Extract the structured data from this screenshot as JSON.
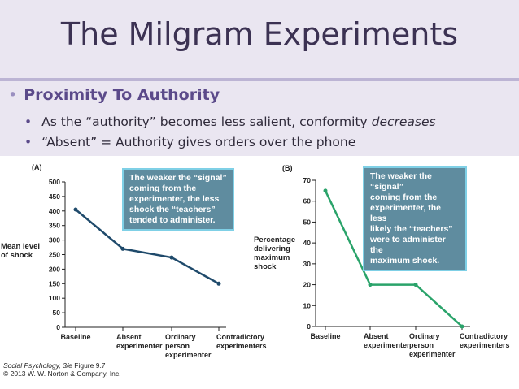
{
  "slide": {
    "title": "The Milgram Experiments",
    "bullet_main": "Proximity To Authority",
    "bullet_sub1_pre": "As the “authority” becomes less salient, conformity ",
    "bullet_sub1_em": "decreases",
    "bullet_sub2": "“Absent” = Authority gives orders over the phone",
    "bullet_glyph": "•"
  },
  "colors": {
    "header_bg": "#eae6f1",
    "title": "#3c3253",
    "accent": "#5b4a8a",
    "line_a": "#1f4a6b",
    "line_b": "#2aa36a",
    "callout_bg": "#5f8c9f",
    "callout_border": "#7fd0e6"
  },
  "chart_data": [
    {
      "panel": "(A)",
      "type": "line",
      "categories": [
        "Baseline",
        "Absent experimenter",
        "Ordinary person experimenter",
        "Contradictory experimenters"
      ],
      "category_lines": [
        [
          "Baseline"
        ],
        [
          "Absent",
          "experimenter"
        ],
        [
          "Ordinary",
          "person",
          "experimenter"
        ],
        [
          "Contradictory",
          "experimenters"
        ]
      ],
      "values": [
        405,
        270,
        240,
        150
      ],
      "ylabel_lines": [
        "Mean level",
        "of shock"
      ],
      "ylim": [
        0,
        500
      ],
      "yticks": [
        0,
        50,
        100,
        150,
        200,
        250,
        300,
        350,
        400,
        450,
        500
      ],
      "callout": [
        "The weaker the “signal”",
        "coming from the",
        "experimenter, the less",
        "shock the “teachers”",
        "tended to administer."
      ],
      "grid": false
    },
    {
      "panel": "(B)",
      "type": "line",
      "categories": [
        "Baseline",
        "Absent experimenter",
        "Ordinary person experimenter",
        "Contradictory experimenters"
      ],
      "category_lines": [
        [
          "Baseline"
        ],
        [
          "Absent",
          "experimenter"
        ],
        [
          "Ordinary",
          "person",
          "experimenter"
        ],
        [
          "Contradictory",
          "experimenters"
        ]
      ],
      "values": [
        65,
        20,
        20,
        0
      ],
      "ylabel_lines": [
        "Percentage",
        "delivering",
        "maximum",
        "shock"
      ],
      "ylim": [
        0,
        70
      ],
      "yticks": [
        0,
        10,
        20,
        30,
        40,
        50,
        60,
        70
      ],
      "callout": [
        "The weaker the “signal”",
        "coming from the",
        "experimenter, the less",
        "likely the “teachers”",
        "were to administer the",
        "maximum shock."
      ],
      "grid": false
    }
  ],
  "credit": {
    "source_title": "Social Psychology, 3/e",
    "source_figure": "Figure 9.7",
    "copyright": "© 2013 W. W. Norton & Company, Inc."
  }
}
